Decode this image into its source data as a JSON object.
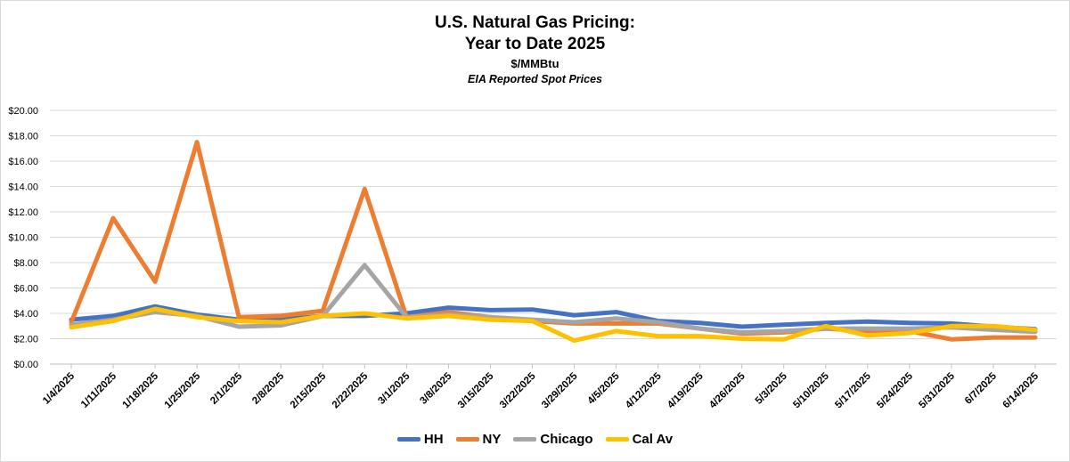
{
  "chart_data": {
    "type": "line",
    "title": "U.S. Natural Gas Pricing:",
    "title2": "Year to Date 2025",
    "subtitle": "$/MMBtu",
    "subtitle2": "EIA Reported Spot Prices",
    "xlabel": "",
    "ylabel": "",
    "ylim": [
      0,
      20
    ],
    "yticks": [
      "$0.00",
      "$2.00",
      "$4.00",
      "$6.00",
      "$8.00",
      "$10.00",
      "$12.00",
      "$14.00",
      "$16.00",
      "$18.00",
      "$20.00"
    ],
    "grid": true,
    "legend": "bottom",
    "categories": [
      "1/4/2025",
      "1/11/2025",
      "1/18/2025",
      "1/25/2025",
      "2/1/2025",
      "2/8/2025",
      "2/15/2025",
      "2/22/2025",
      "3/1/2025",
      "3/8/2025",
      "3/15/2025",
      "3/22/2025",
      "3/29/2025",
      "4/5/2025",
      "4/12/2025",
      "4/19/2025",
      "4/26/2025",
      "5/3/2025",
      "5/10/2025",
      "5/17/2025",
      "5/24/2025",
      "5/31/2025",
      "6/7/2025",
      "6/14/2025"
    ],
    "series": [
      {
        "name": "HH",
        "color": "#4472c4",
        "values": [
          3.5,
          3.8,
          4.55,
          3.9,
          3.5,
          3.5,
          3.8,
          3.8,
          4.0,
          4.45,
          4.25,
          4.3,
          3.85,
          4.1,
          3.4,
          3.25,
          2.95,
          3.1,
          3.25,
          3.35,
          3.25,
          3.2,
          2.95,
          2.75
        ]
      },
      {
        "name": "NY",
        "color": "#ed7d31",
        "values": [
          3.3,
          11.5,
          6.5,
          17.5,
          3.7,
          3.8,
          4.2,
          13.8,
          3.7,
          4.1,
          3.7,
          3.4,
          3.2,
          3.2,
          3.2,
          2.8,
          2.4,
          2.5,
          2.8,
          2.6,
          2.6,
          1.95,
          2.1,
          2.1
        ]
      },
      {
        "name": "Chicago",
        "color": "#a5a5a5",
        "values": [
          3.1,
          3.5,
          4.1,
          3.8,
          2.95,
          3.05,
          3.8,
          7.8,
          3.7,
          3.9,
          3.7,
          3.5,
          3.3,
          3.6,
          3.3,
          2.8,
          2.5,
          2.6,
          2.8,
          2.8,
          2.8,
          2.9,
          2.7,
          2.55
        ]
      },
      {
        "name": "Cal Av",
        "color": "#ffc000",
        "values": [
          2.9,
          3.4,
          4.35,
          3.7,
          3.4,
          3.3,
          3.8,
          4.0,
          3.6,
          3.8,
          3.5,
          3.4,
          1.85,
          2.6,
          2.2,
          2.2,
          2.0,
          1.95,
          3.0,
          2.25,
          2.45,
          3.0,
          3.0,
          2.7
        ]
      }
    ]
  }
}
